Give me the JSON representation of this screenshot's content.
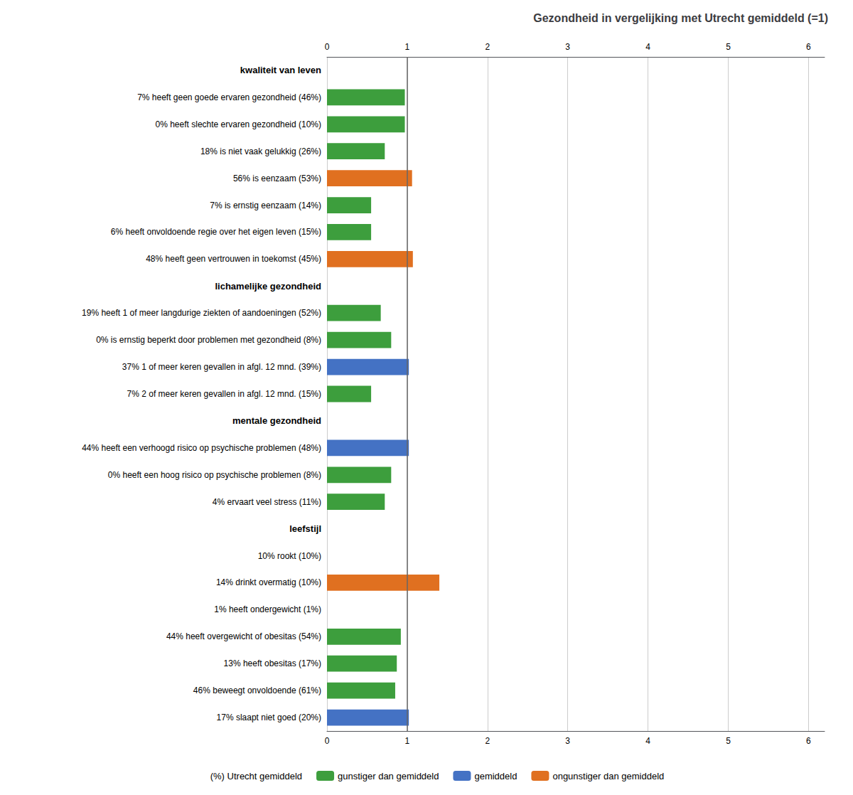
{
  "chart_data": {
    "type": "bar",
    "orientation": "horizontal",
    "title": "Gezondheid in vergelijking met Utrecht gemiddeld (=1)",
    "categories": [
      "kwaliteit van leven",
      "7% heeft geen goede ervaren gezondheid (46%)",
      "0% heeft slechte ervaren gezondheid (10%)",
      "18% is niet vaak gelukkig (26%)",
      "56% is eenzaam (53%)",
      "7% is ernstig eenzaam (14%)",
      "6% heeft onvoldoende regie over het eigen leven (15%)",
      "48% heeft geen vertrouwen in toekomst (45%)",
      "lichamelijke gezondheid",
      "19% heeft 1 of meer langdurige ziekten of aandoeningen (52%)",
      "0% is ernstig beperkt door problemen met gezondheid (8%)",
      "37% 1 of meer keren gevallen in afgl. 12 mnd. (39%)",
      "7% 2 of meer keren gevallen in afgl. 12 mnd. (15%)",
      "mentale gezondheid",
      "44% heeft een verhoogd risico op psychische problemen (48%)",
      "0% heeft een hoog risico op psychische problemen (8%)",
      "4% ervaart veel stress (11%)",
      "leefstijl",
      "10% rookt (10%)",
      "14% drinkt overmatig (10%)",
      "1% heeft ondergewicht (1%)",
      "44% heeft overgewicht of obesitas (54%)",
      "13% heeft obesitas (17%)",
      "46% beweegt onvoldoende (61%)",
      "17% slaapt niet goed (20%)"
    ],
    "series": [
      {
        "name": "(%) Utrecht gemiddeld",
        "color": "#ffffff",
        "values": [
          null,
          null,
          null,
          null,
          null,
          null,
          null,
          null,
          null,
          null,
          null,
          null,
          null,
          null,
          null,
          null,
          null,
          null,
          null,
          null,
          null,
          null,
          null,
          null,
          null
        ]
      },
      {
        "name": "gunstiger dan gemiddeld",
        "color": "#3d9e3d",
        "values": [
          null,
          0.97,
          0.97,
          0.72,
          null,
          0.55,
          0.55,
          null,
          null,
          0.67,
          0.8,
          null,
          0.55,
          null,
          null,
          0.8,
          0.72,
          null,
          0.0,
          null,
          0.0,
          0.92,
          0.87,
          0.85,
          null
        ]
      },
      {
        "name": "gemiddeld",
        "color": "#4472c4",
        "values": [
          null,
          null,
          null,
          null,
          null,
          null,
          null,
          null,
          null,
          null,
          null,
          1.02,
          null,
          null,
          1.02,
          null,
          null,
          null,
          null,
          null,
          null,
          null,
          null,
          null,
          1.02
        ]
      },
      {
        "name": "ongunstiger dan gemiddeld",
        "color": "#e07020",
        "values": [
          null,
          null,
          null,
          null,
          1.06,
          null,
          null,
          1.07,
          null,
          null,
          null,
          null,
          null,
          null,
          null,
          null,
          null,
          null,
          null,
          1.4,
          null,
          null,
          null,
          null,
          null
        ]
      }
    ],
    "reference_line": 1,
    "xlim": [
      0,
      6.2
    ],
    "xticks": [
      0,
      1,
      2,
      3,
      4,
      5,
      6
    ],
    "grid": true,
    "legend": "bottom"
  }
}
